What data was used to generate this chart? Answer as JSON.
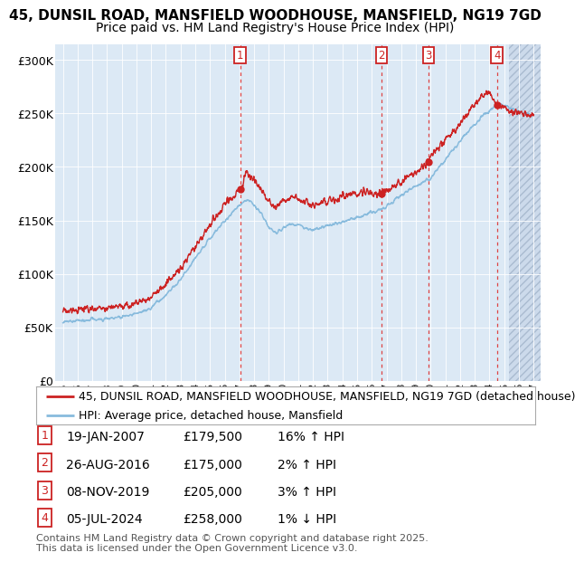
{
  "title_line1": "45, DUNSIL ROAD, MANSFIELD WOODHOUSE, MANSFIELD, NG19 7GD",
  "title_line2": "Price paid vs. HM Land Registry's House Price Index (HPI)",
  "ylabel_ticks": [
    "£0",
    "£50K",
    "£100K",
    "£150K",
    "£200K",
    "£250K",
    "£300K"
  ],
  "ytick_values": [
    0,
    50000,
    100000,
    150000,
    200000,
    250000,
    300000
  ],
  "ylim": [
    0,
    315000
  ],
  "xlim_start": 1994.5,
  "xlim_end": 2027.5,
  "transactions": [
    {
      "num": 1,
      "date": "19-JAN-2007",
      "price": 179500,
      "year": 2007.05,
      "hpi_change": "16% ↑ HPI"
    },
    {
      "num": 2,
      "date": "26-AUG-2016",
      "price": 175000,
      "year": 2016.65,
      "hpi_change": "2% ↑ HPI"
    },
    {
      "num": 3,
      "date": "08-NOV-2019",
      "price": 205000,
      "year": 2019.85,
      "hpi_change": "3% ↑ HPI"
    },
    {
      "num": 4,
      "date": "05-JUL-2024",
      "price": 258000,
      "year": 2024.51,
      "hpi_change": "1% ↓ HPI"
    }
  ],
  "legend_label_red": "45, DUNSIL ROAD, MANSFIELD WOODHOUSE, MANSFIELD, NG19 7GD (detached house)",
  "legend_label_blue": "HPI: Average price, detached house, Mansfield",
  "footer": "Contains HM Land Registry data © Crown copyright and database right 2025.\nThis data is licensed under the Open Government Licence v3.0.",
  "bg_color": "#dce9f5",
  "hatch_bg_color": "#ccdaeb",
  "red_color": "#cc2222",
  "blue_color": "#88bbdd",
  "grid_color": "#ffffff",
  "title_fontsize": 11,
  "subtitle_fontsize": 10,
  "axis_fontsize": 9,
  "legend_fontsize": 9,
  "table_fontsize": 10,
  "footer_fontsize": 8,
  "future_start": 2025.3
}
